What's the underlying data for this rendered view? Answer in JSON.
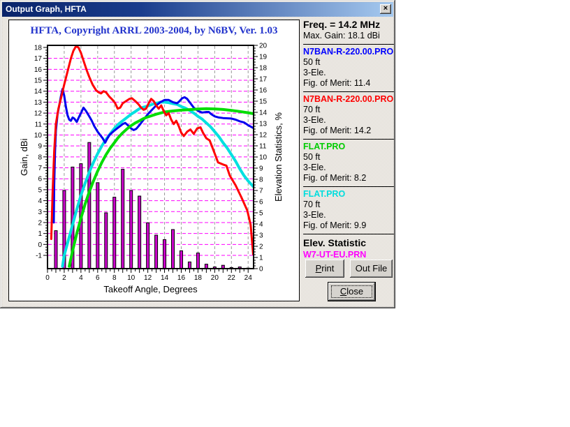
{
  "window": {
    "title": "Output Graph, HFTA",
    "close_glyph": "×"
  },
  "chart_data": {
    "type": "line+bar",
    "title": "HFTA, Copyright ARRL 2003-2004, by N6BV, Ver. 1.03",
    "xlabel": "Takeoff Angle, Degrees",
    "ylabel_left": "Gain, dBi",
    "ylabel_right": "Elevation Statistics, %",
    "x_range": [
      0,
      24.65
    ],
    "x_label_step": 2,
    "x_label_max": 24,
    "y_left_range": [
      -1,
      18
    ],
    "y_right_range": [
      0,
      20
    ],
    "grid": {
      "h_color": "#ff00ff",
      "v_color": "#999999"
    },
    "series": [
      {
        "name": "FLAT.PRO 70 ft",
        "color": "#00e0e0",
        "width": 4,
        "axis": "left",
        "points": [
          [
            1.8,
            -2.0
          ],
          [
            2.0,
            -1.0
          ],
          [
            2.5,
            0.4
          ],
          [
            3.0,
            1.8
          ],
          [
            3.5,
            3.2
          ],
          [
            4.0,
            4.5
          ],
          [
            4.5,
            5.6
          ],
          [
            5.0,
            6.6
          ],
          [
            5.5,
            7.5
          ],
          [
            6.0,
            8.3
          ],
          [
            6.5,
            9.0
          ],
          [
            7.0,
            9.6
          ],
          [
            7.5,
            10.1
          ],
          [
            8.0,
            10.6
          ],
          [
            8.5,
            11.0
          ],
          [
            9.0,
            11.3
          ],
          [
            9.5,
            11.6
          ],
          [
            10.0,
            11.9
          ],
          [
            10.5,
            12.15
          ],
          [
            11.0,
            12.4
          ],
          [
            11.5,
            12.55
          ],
          [
            12.0,
            12.65
          ],
          [
            12.5,
            12.8
          ],
          [
            13.0,
            12.9
          ],
          [
            13.5,
            13.0
          ],
          [
            14.0,
            13.0
          ],
          [
            14.5,
            12.95
          ],
          [
            15.0,
            12.87
          ],
          [
            15.5,
            12.8
          ],
          [
            16.0,
            12.6
          ],
          [
            16.5,
            12.45
          ],
          [
            17.0,
            12.25
          ],
          [
            17.5,
            12.0
          ],
          [
            18.0,
            11.7
          ],
          [
            18.5,
            11.45
          ],
          [
            19.0,
            11.1
          ],
          [
            19.5,
            10.75
          ],
          [
            20.0,
            10.3
          ],
          [
            20.5,
            9.85
          ],
          [
            21.0,
            9.3
          ],
          [
            21.5,
            8.8
          ],
          [
            22.0,
            8.2
          ],
          [
            22.5,
            7.6
          ],
          [
            23.0,
            6.9
          ],
          [
            23.5,
            6.3
          ],
          [
            24.0,
            5.8
          ],
          [
            24.6,
            5.3
          ]
        ]
      },
      {
        "name": "N7BAN-R-220.00.PRO 50 ft",
        "color": "#0000ee",
        "width": 3,
        "axis": "left",
        "points": [
          [
            0.75,
            2.0
          ],
          [
            0.8,
            5.5
          ],
          [
            0.9,
            8.5
          ],
          [
            1.0,
            10.4
          ],
          [
            1.2,
            11.9
          ],
          [
            1.4,
            12.7
          ],
          [
            1.6,
            13.5
          ],
          [
            1.8,
            14.2
          ],
          [
            2.0,
            13.6
          ],
          [
            2.2,
            12.6
          ],
          [
            2.4,
            11.8
          ],
          [
            2.6,
            11.4
          ],
          [
            2.8,
            11.3
          ],
          [
            3.0,
            11.6
          ],
          [
            3.2,
            11.5
          ],
          [
            3.5,
            11.2
          ],
          [
            3.8,
            11.7
          ],
          [
            4.0,
            12.0
          ],
          [
            4.3,
            12.5
          ],
          [
            4.6,
            12.2
          ],
          [
            5.0,
            11.7
          ],
          [
            5.3,
            11.3
          ],
          [
            5.6,
            10.8
          ],
          [
            6.0,
            10.3
          ],
          [
            6.3,
            10.0
          ],
          [
            6.6,
            9.7
          ],
          [
            6.9,
            9.3
          ],
          [
            7.1,
            9.6
          ],
          [
            7.4,
            10.0
          ],
          [
            7.7,
            10.2
          ],
          [
            8.0,
            10.4
          ],
          [
            8.5,
            10.7
          ],
          [
            9.0,
            11.0
          ],
          [
            9.3,
            11.1
          ],
          [
            9.6,
            10.9
          ],
          [
            10.0,
            10.6
          ],
          [
            10.3,
            10.45
          ],
          [
            10.6,
            10.55
          ],
          [
            11.0,
            10.9
          ],
          [
            11.5,
            11.4
          ],
          [
            12.0,
            11.9
          ],
          [
            12.5,
            12.3
          ],
          [
            13.0,
            12.7
          ],
          [
            13.5,
            13.0
          ],
          [
            14.0,
            13.2
          ],
          [
            14.5,
            13.2
          ],
          [
            15.0,
            13.0
          ],
          [
            15.5,
            12.9
          ],
          [
            15.8,
            13.1
          ],
          [
            16.1,
            13.35
          ],
          [
            16.4,
            13.45
          ],
          [
            16.7,
            13.3
          ],
          [
            17.0,
            13.0
          ],
          [
            17.5,
            12.5
          ],
          [
            18.0,
            12.2
          ],
          [
            18.5,
            12.05
          ],
          [
            19.0,
            12.1
          ],
          [
            19.3,
            12.1
          ],
          [
            19.6,
            11.9
          ],
          [
            20.0,
            11.7
          ],
          [
            20.5,
            11.6
          ],
          [
            21.0,
            11.55
          ],
          [
            22.0,
            11.5
          ],
          [
            22.5,
            11.4
          ],
          [
            23.0,
            11.25
          ],
          [
            23.5,
            11.15
          ],
          [
            24.0,
            10.9
          ],
          [
            24.6,
            10.65
          ]
        ]
      },
      {
        "name": "FLAT.PRO 50 ft",
        "color": "#00dd00",
        "width": 4,
        "axis": "left",
        "points": [
          [
            2.6,
            -2.0
          ],
          [
            3.0,
            -0.6
          ],
          [
            3.5,
            1.0
          ],
          [
            4.0,
            2.4
          ],
          [
            4.5,
            3.7
          ],
          [
            5.0,
            4.8
          ],
          [
            5.5,
            5.8
          ],
          [
            6.0,
            6.7
          ],
          [
            6.5,
            7.5
          ],
          [
            7.0,
            8.2
          ],
          [
            7.5,
            8.8
          ],
          [
            8.0,
            9.3
          ],
          [
            8.5,
            9.8
          ],
          [
            9.0,
            10.2
          ],
          [
            9.5,
            10.55
          ],
          [
            10.0,
            10.85
          ],
          [
            10.5,
            11.1
          ],
          [
            11.0,
            11.3
          ],
          [
            11.5,
            11.5
          ],
          [
            12.0,
            11.65
          ],
          [
            13.0,
            11.9
          ],
          [
            14.0,
            12.1
          ],
          [
            15.0,
            12.2
          ],
          [
            16.0,
            12.27
          ],
          [
            17.0,
            12.32
          ],
          [
            18.0,
            12.37
          ],
          [
            19.0,
            12.4
          ],
          [
            20.0,
            12.38
          ],
          [
            21.0,
            12.33
          ],
          [
            22.0,
            12.25
          ],
          [
            23.0,
            12.15
          ],
          [
            24.0,
            12.03
          ],
          [
            24.6,
            11.95
          ]
        ]
      },
      {
        "name": "N7BAN-R-220.00.PRO 70 ft",
        "color": "#ff0000",
        "width": 3,
        "axis": "left",
        "points": [
          [
            0.45,
            0.5
          ],
          [
            0.6,
            4.5
          ],
          [
            0.8,
            8.5
          ],
          [
            1.0,
            11.0
          ],
          [
            1.3,
            12.4
          ],
          [
            1.6,
            13.3
          ],
          [
            2.0,
            14.6
          ],
          [
            2.4,
            15.8
          ],
          [
            2.8,
            17.0
          ],
          [
            3.1,
            17.7
          ],
          [
            3.4,
            18.1
          ],
          [
            3.7,
            18.0
          ],
          [
            4.0,
            17.5
          ],
          [
            4.3,
            16.8
          ],
          [
            4.7,
            15.9
          ],
          [
            5.0,
            15.3
          ],
          [
            5.4,
            14.6
          ],
          [
            5.8,
            14.1
          ],
          [
            6.1,
            13.9
          ],
          [
            6.4,
            13.8
          ],
          [
            6.7,
            14.0
          ],
          [
            7.0,
            13.9
          ],
          [
            7.4,
            13.5
          ],
          [
            7.8,
            13.2
          ],
          [
            8.1,
            12.9
          ],
          [
            8.4,
            12.4
          ],
          [
            8.7,
            12.5
          ],
          [
            9.0,
            12.9
          ],
          [
            9.4,
            13.1
          ],
          [
            9.8,
            13.3
          ],
          [
            10.1,
            13.35
          ],
          [
            10.5,
            13.1
          ],
          [
            10.9,
            12.8
          ],
          [
            11.2,
            12.5
          ],
          [
            11.5,
            12.3
          ],
          [
            11.8,
            12.4
          ],
          [
            12.1,
            12.9
          ],
          [
            12.4,
            13.3
          ],
          [
            12.7,
            13.1
          ],
          [
            13.0,
            12.7
          ],
          [
            13.3,
            12.4
          ],
          [
            13.6,
            12.7
          ],
          [
            13.9,
            12.2
          ],
          [
            14.2,
            11.8
          ],
          [
            14.5,
            12.0
          ],
          [
            14.8,
            11.4
          ],
          [
            15.1,
            11.0
          ],
          [
            15.4,
            11.3
          ],
          [
            15.7,
            10.8
          ],
          [
            16.0,
            10.2
          ],
          [
            16.3,
            9.9
          ],
          [
            16.7,
            10.3
          ],
          [
            17.1,
            10.5
          ],
          [
            17.5,
            10.1
          ],
          [
            17.9,
            10.6
          ],
          [
            18.3,
            10.7
          ],
          [
            18.6,
            10.2
          ],
          [
            19.0,
            9.7
          ],
          [
            19.4,
            9.5
          ],
          [
            19.7,
            8.9
          ],
          [
            20.0,
            8.3
          ],
          [
            20.4,
            7.5
          ],
          [
            21.0,
            7.3
          ],
          [
            21.4,
            7.2
          ],
          [
            21.8,
            6.3
          ],
          [
            22.5,
            5.4
          ],
          [
            23.2,
            4.3
          ],
          [
            23.9,
            3.1
          ],
          [
            24.3,
            1.8
          ],
          [
            24.6,
            -0.9
          ]
        ]
      }
    ],
    "bars": {
      "name": "W7-UT-EU.PRN elevation statistic",
      "color": "#cc00cc",
      "axis": "right",
      "points": [
        [
          1,
          3.4
        ],
        [
          2,
          7.0
        ],
        [
          3,
          9.1
        ],
        [
          4,
          9.4
        ],
        [
          5,
          11.3
        ],
        [
          6,
          7.7
        ],
        [
          7,
          5.0
        ],
        [
          8,
          6.4
        ],
        [
          9,
          8.9
        ],
        [
          10,
          7.0
        ],
        [
          11,
          6.5
        ],
        [
          12,
          4.1
        ],
        [
          13,
          3.0
        ],
        [
          14,
          2.6
        ],
        [
          15,
          3.5
        ],
        [
          16,
          1.6
        ],
        [
          17,
          0.6
        ],
        [
          18,
          1.4
        ],
        [
          19,
          0.4
        ],
        [
          20,
          0.15
        ],
        [
          21,
          0.3
        ],
        [
          22,
          0.1
        ],
        [
          23,
          0.15
        ],
        [
          24,
          0.05
        ]
      ]
    }
  },
  "panel": {
    "freq": "Freq. = 14.2 MHz",
    "max_gain": "Max. Gain: 18.1 dBi",
    "sections": [
      {
        "file": "N7BAN-R-220.00.PRO",
        "color": "#0000ff",
        "height": "50 ft",
        "elements": "3-Ele.",
        "merit": "Fig. of Merit:  11.4"
      },
      {
        "file": "N7BAN-R-220.00.PRO",
        "color": "#ff0000",
        "height": "70 ft",
        "elements": "3-Ele.",
        "merit": "Fig. of Merit:  14.2"
      },
      {
        "file": "FLAT.PRO",
        "color": "#00cc00",
        "height": "50 ft",
        "elements": "3-Ele.",
        "merit": "Fig. of Merit:  8.2"
      },
      {
        "file": "FLAT.PRO",
        "color": "#00dddd",
        "height": "70 ft",
        "elements": "3-Ele.",
        "merit": "Fig. of Merit:  9.9"
      }
    ],
    "elev_title": "Elev. Statistic",
    "elev_file": "W7-UT-EU.PRN",
    "elev_file_color": "#ff00ff"
  },
  "buttons": {
    "print_accel": "P",
    "print_rest": "rint",
    "outfile": "Out File",
    "close_accel": "C",
    "close_rest": "lose"
  }
}
